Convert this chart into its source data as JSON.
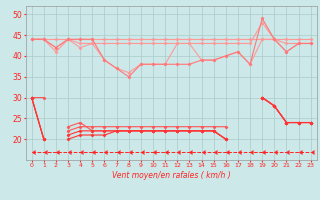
{
  "background_color": "#cce8e8",
  "grid_color": "#aacccc",
  "x_values": [
    0,
    1,
    2,
    3,
    4,
    5,
    6,
    7,
    8,
    9,
    10,
    11,
    12,
    13,
    14,
    15,
    16,
    17,
    18,
    19,
    20,
    21,
    22,
    23
  ],
  "xlabel": "Vent moyen/en rafales ( km/h )",
  "ylim": [
    15,
    52
  ],
  "yticks": [
    20,
    25,
    30,
    35,
    40,
    45,
    50
  ],
  "series": [
    {
      "color": "#ff9999",
      "linewidth": 0.8,
      "marker": "D",
      "markersize": 1.5,
      "data": [
        44,
        44,
        44,
        44,
        44,
        44,
        44,
        44,
        44,
        44,
        44,
        44,
        44,
        44,
        44,
        44,
        44,
        44,
        44,
        44,
        44,
        44,
        44,
        44
      ]
    },
    {
      "color": "#ff9999",
      "linewidth": 0.8,
      "marker": "D",
      "markersize": 1.5,
      "data": [
        44,
        44,
        41,
        44,
        42,
        43,
        43,
        43,
        43,
        43,
        43,
        43,
        43,
        43,
        43,
        43,
        43,
        43,
        43,
        48,
        44,
        41,
        43,
        43
      ]
    },
    {
      "color": "#ff9999",
      "linewidth": 0.8,
      "marker": "D",
      "markersize": 1.5,
      "data": [
        44,
        44,
        42,
        44,
        43,
        43,
        39,
        37,
        36,
        38,
        38,
        38,
        43,
        43,
        39,
        39,
        40,
        41,
        38,
        44,
        44,
        43,
        43,
        43
      ]
    },
    {
      "color": "#ff7777",
      "linewidth": 0.8,
      "marker": "D",
      "markersize": 1.5,
      "data": [
        44,
        44,
        42,
        44,
        44,
        44,
        39,
        37,
        35,
        38,
        38,
        38,
        38,
        38,
        39,
        39,
        40,
        41,
        38,
        49,
        44,
        41,
        43,
        43
      ]
    },
    {
      "color": "#ff5555",
      "linewidth": 0.8,
      "marker": "D",
      "markersize": 1.5,
      "data": [
        30,
        30,
        null,
        22,
        23,
        23,
        23,
        23,
        23,
        23,
        23,
        23,
        23,
        23,
        23,
        23,
        23,
        null,
        null,
        30,
        28,
        24,
        24,
        24
      ]
    },
    {
      "color": "#ff5555",
      "linewidth": 0.8,
      "marker": "D",
      "markersize": 1.5,
      "data": [
        30,
        20,
        null,
        23,
        24,
        22,
        22,
        22,
        22,
        22,
        22,
        22,
        22,
        22,
        22,
        22,
        20,
        null,
        null,
        30,
        28,
        24,
        24,
        24
      ]
    },
    {
      "color": "#ff3333",
      "linewidth": 0.8,
      "marker": "D",
      "markersize": 1.5,
      "data": [
        30,
        20,
        null,
        21,
        22,
        22,
        22,
        22,
        22,
        22,
        22,
        22,
        22,
        22,
        22,
        22,
        20,
        null,
        null,
        30,
        28,
        24,
        24,
        24
      ]
    },
    {
      "color": "#ff3333",
      "linewidth": 0.8,
      "marker": "D",
      "markersize": 1.5,
      "data": [
        30,
        20,
        null,
        20,
        21,
        21,
        21,
        22,
        22,
        22,
        22,
        22,
        22,
        22,
        22,
        22,
        20,
        null,
        null,
        30,
        28,
        24,
        24,
        24
      ]
    },
    {
      "color": "#ff2222",
      "linewidth": 0.7,
      "marker": 4,
      "markersize": 3,
      "linestyle": "dashed",
      "data": [
        17,
        17,
        17,
        17,
        17,
        17,
        17,
        17,
        17,
        17,
        17,
        17,
        17,
        17,
        17,
        17,
        17,
        17,
        17,
        17,
        17,
        17,
        17,
        17
      ]
    }
  ]
}
